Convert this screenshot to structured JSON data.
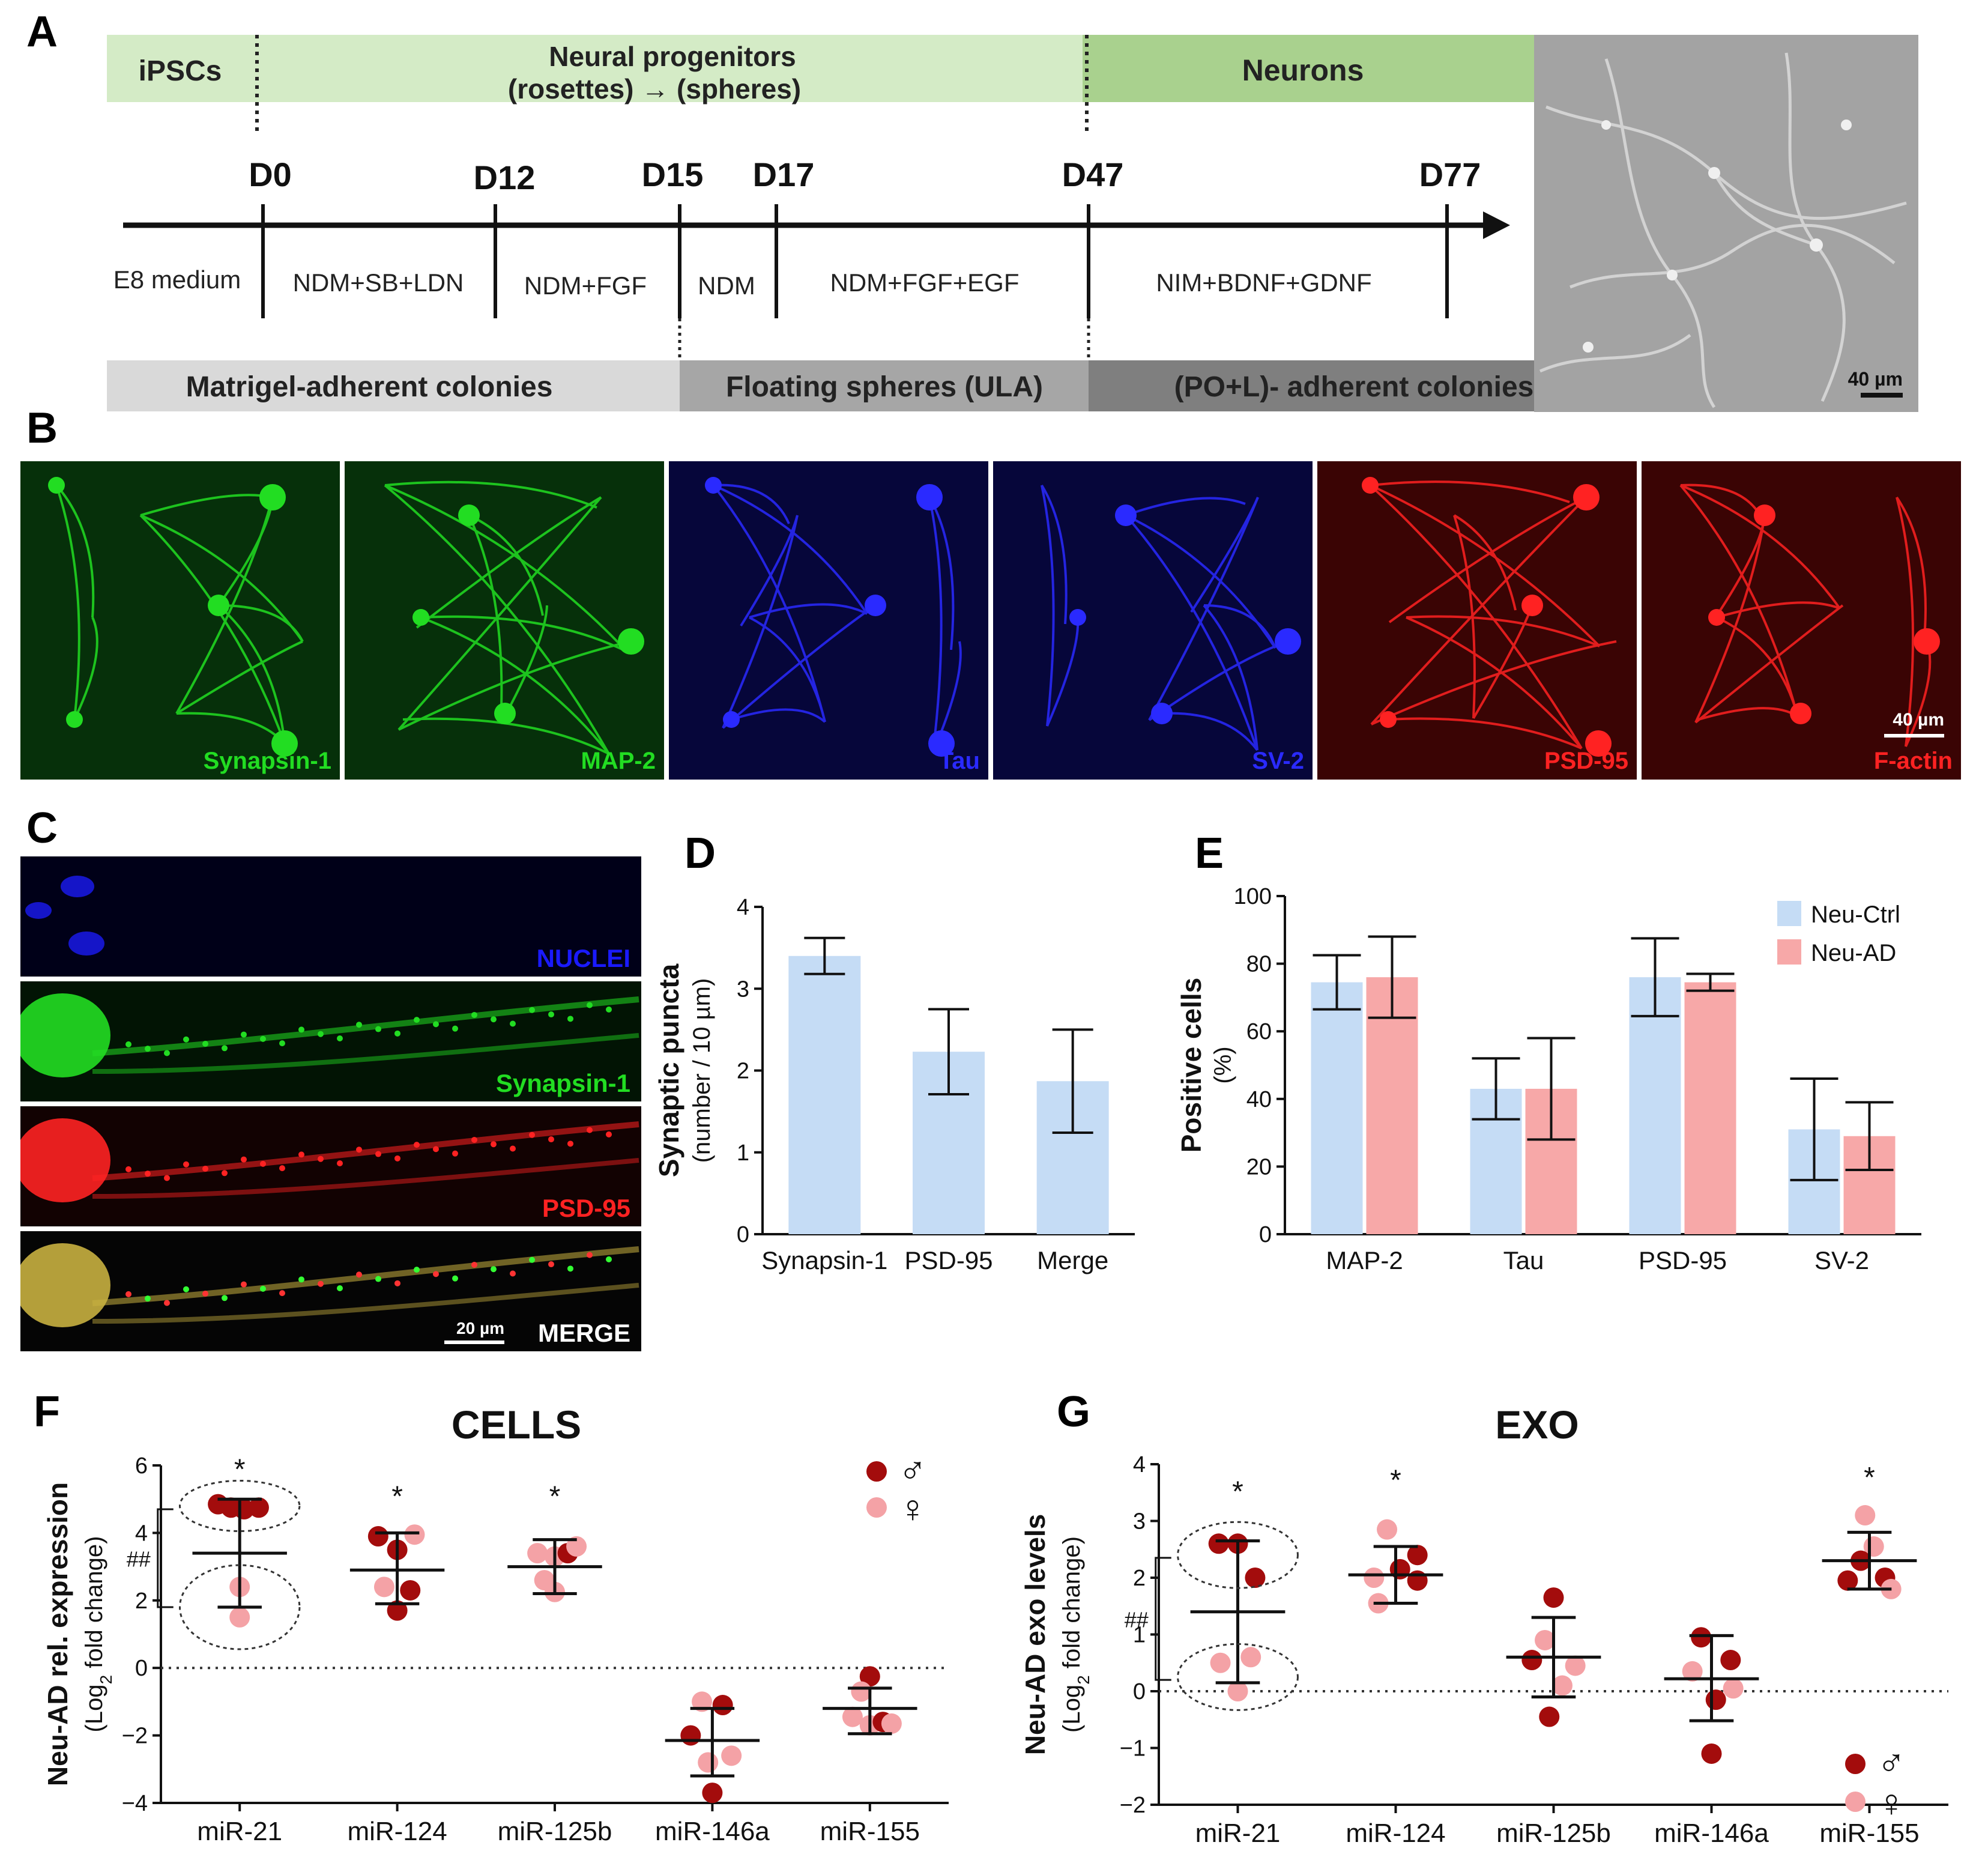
{
  "panels": {
    "a": "A",
    "b": "B",
    "c": "C",
    "d": "D",
    "e": "E",
    "f": "F",
    "g": "G"
  },
  "panelA": {
    "stages": {
      "ipsc": "iPSCs",
      "progenitors_line1": "Neural progenitors",
      "progenitors_line2": "(rosettes)  →  (spheres)",
      "neurons": "Neurons"
    },
    "days": [
      "D0",
      "D12",
      "D15",
      "D17",
      "D47",
      "D77"
    ],
    "media": [
      "E8 medium",
      "NDM+SB+LDN",
      "NDM+FGF",
      "NDM",
      "NDM+FGF+EGF",
      "NIM+BDNF+GDNF"
    ],
    "substrates": [
      "Matrigel-adherent colonies",
      "Floating spheres (ULA)",
      "(PO+L)- adherent colonies"
    ],
    "scale": "40 µm",
    "colors": {
      "stage_light": "#d4ebc6",
      "stage_dark": "#a9d18e",
      "sub_light": "#d9d9d9",
      "sub_mid": "#a6a6a6",
      "sub_dark": "#7f7f7f"
    }
  },
  "panelB": {
    "stains": [
      {
        "label": "Synapsin-1",
        "color": "#22dd22"
      },
      {
        "label": "MAP-2",
        "color": "#22dd22"
      },
      {
        "label": "Tau",
        "color": "#2a2aff"
      },
      {
        "label": "SV-2",
        "color": "#2a2aff"
      },
      {
        "label": "PSD-95",
        "color": "#ff2222"
      },
      {
        "label": "F-actin",
        "color": "#ff2222"
      }
    ],
    "scale": "40 µm"
  },
  "panelC": {
    "channels": [
      {
        "label": "NUCLEI",
        "color": "#1a1aff"
      },
      {
        "label": "Synapsin-1",
        "color": "#22dd22"
      },
      {
        "label": "PSD-95",
        "color": "#ff2222"
      },
      {
        "label": "MERGE",
        "color": "#ffffff"
      }
    ],
    "scale": "20 µm"
  },
  "chart_data": [
    {
      "id": "D",
      "type": "bar",
      "categories": [
        "Synapsin-1",
        "PSD-95",
        "Merge"
      ],
      "values": [
        3.4,
        2.23,
        1.87
      ],
      "errors": [
        0.22,
        0.52,
        0.63
      ],
      "ylabel_line1": "Synaptic puncta",
      "ylabel_line2": "(number / 10 µm)",
      "ylim": [
        0,
        4
      ],
      "yticks": [
        "0",
        "1",
        "2",
        "3",
        "4"
      ],
      "yticks_values": [
        0,
        1,
        2,
        3,
        4
      ],
      "bar_color": "#c5dcf5"
    },
    {
      "id": "E",
      "type": "bar",
      "categories": [
        "MAP-2",
        "Tau",
        "PSD-95",
        "SV-2"
      ],
      "series": [
        {
          "name": "Neu-Ctrl",
          "color": "#c5dcf5",
          "values": [
            74.5,
            43,
            76,
            31
          ],
          "errors": [
            8,
            9,
            11.5,
            15
          ]
        },
        {
          "name": "Neu-AD",
          "color": "#f7a8a8",
          "values": [
            76,
            43,
            74.5,
            29
          ],
          "errors": [
            12,
            15,
            2.5,
            10
          ]
        }
      ],
      "ylabel_line1": "Positive cells",
      "ylabel_line2": "(%)",
      "ylim": [
        0,
        100
      ],
      "yticks": [
        "0",
        "20",
        "40",
        "60",
        "80",
        "100"
      ],
      "yticks_values": [
        0,
        20,
        40,
        60,
        80,
        100
      ]
    },
    {
      "id": "F",
      "type": "scatter",
      "title": "CELLS",
      "categories": [
        "miR-21",
        "miR-124",
        "miR-125b",
        "miR-146a",
        "miR-155"
      ],
      "ylabel_line1": "Neu-AD rel. expression",
      "ylabel_line2": "(Log",
      "ylabel_sub": "2",
      "ylabel_line3": " fold change)",
      "ylim": [
        -4,
        6
      ],
      "yticks": [
        "−4",
        "−2",
        "0",
        "2",
        "4",
        "6"
      ],
      "yticks_values": [
        -4,
        -2,
        0,
        2,
        4,
        6
      ],
      "means": [
        3.4,
        2.9,
        3.0,
        -2.15,
        -1.2
      ],
      "sd_upper": [
        5.0,
        4.0,
        3.8,
        -1.2,
        -0.6
      ],
      "sd_lower": [
        1.8,
        1.9,
        2.2,
        -3.2,
        -1.95
      ],
      "points": [
        [
          {
            "x": -0.25,
            "y": 4.85,
            "sex": "M"
          },
          {
            "x": -0.1,
            "y": 4.75,
            "sex": "M"
          },
          {
            "x": 0.05,
            "y": 4.7,
            "sex": "M"
          },
          {
            "x": 0.22,
            "y": 4.75,
            "sex": "M"
          },
          {
            "x": 0.0,
            "y": 2.4,
            "sex": "F"
          },
          {
            "x": 0.0,
            "y": 1.5,
            "sex": "F"
          }
        ],
        [
          {
            "x": -0.22,
            "y": 3.9,
            "sex": "M"
          },
          {
            "x": 0.0,
            "y": 3.5,
            "sex": "M"
          },
          {
            "x": 0.2,
            "y": 3.95,
            "sex": "F"
          },
          {
            "x": -0.15,
            "y": 2.4,
            "sex": "F"
          },
          {
            "x": 0.15,
            "y": 2.3,
            "sex": "M"
          },
          {
            "x": 0.0,
            "y": 1.7,
            "sex": "M"
          }
        ],
        [
          {
            "x": -0.2,
            "y": 3.4,
            "sex": "F"
          },
          {
            "x": 0.0,
            "y": 3.3,
            "sex": "F"
          },
          {
            "x": 0.15,
            "y": 3.4,
            "sex": "M"
          },
          {
            "x": 0.25,
            "y": 3.6,
            "sex": "F"
          },
          {
            "x": -0.12,
            "y": 2.6,
            "sex": "F"
          },
          {
            "x": 0.0,
            "y": 2.25,
            "sex": "F"
          }
        ],
        [
          {
            "x": -0.12,
            "y": -1.0,
            "sex": "F"
          },
          {
            "x": 0.12,
            "y": -1.1,
            "sex": "M"
          },
          {
            "x": -0.25,
            "y": -2.0,
            "sex": "M"
          },
          {
            "x": 0.22,
            "y": -2.6,
            "sex": "F"
          },
          {
            "x": -0.05,
            "y": -2.8,
            "sex": "F"
          },
          {
            "x": 0.0,
            "y": -3.7,
            "sex": "M"
          }
        ],
        [
          {
            "x": 0.0,
            "y": -0.25,
            "sex": "M"
          },
          {
            "x": -0.1,
            "y": -0.7,
            "sex": "F"
          },
          {
            "x": -0.2,
            "y": -1.45,
            "sex": "F"
          },
          {
            "x": 0.0,
            "y": -1.7,
            "sex": "F"
          },
          {
            "x": 0.15,
            "y": -1.6,
            "sex": "M"
          },
          {
            "x": 0.25,
            "y": -1.65,
            "sex": "F"
          }
        ]
      ],
      "significance": [
        "*",
        "*",
        "*",
        "",
        ""
      ],
      "bracket_label": "##",
      "legend": {
        "male_symbol": "♂",
        "female_symbol": "♀"
      }
    },
    {
      "id": "G",
      "type": "scatter",
      "title": "EXO",
      "categories": [
        "miR-21",
        "miR-124",
        "miR-125b",
        "miR-146a",
        "miR-155"
      ],
      "ylabel_line1": "Neu-AD exo levels",
      "ylabel_line2": "(Log",
      "ylabel_sub": "2",
      "ylabel_line3": " fold change)",
      "ylim": [
        -2,
        4
      ],
      "yticks": [
        "−2",
        "−1",
        "0",
        "1",
        "2",
        "3",
        "4"
      ],
      "yticks_values": [
        -2,
        -1,
        0,
        1,
        2,
        3,
        4
      ],
      "means": [
        1.4,
        2.05,
        0.6,
        0.22,
        2.3
      ],
      "sd_upper": [
        2.65,
        2.55,
        1.3,
        0.98,
        2.8
      ],
      "sd_lower": [
        0.15,
        1.55,
        -0.1,
        -0.52,
        1.8
      ],
      "points": [
        [
          {
            "x": -0.22,
            "y": 2.6,
            "sex": "M"
          },
          {
            "x": 0.0,
            "y": 2.6,
            "sex": "M"
          },
          {
            "x": 0.2,
            "y": 2.0,
            "sex": "M"
          },
          {
            "x": -0.2,
            "y": 0.5,
            "sex": "F"
          },
          {
            "x": 0.15,
            "y": 0.6,
            "sex": "F"
          },
          {
            "x": 0.0,
            "y": 0.0,
            "sex": "F"
          }
        ],
        [
          {
            "x": -0.1,
            "y": 2.85,
            "sex": "F"
          },
          {
            "x": 0.25,
            "y": 2.4,
            "sex": "M"
          },
          {
            "x": 0.05,
            "y": 2.15,
            "sex": "M"
          },
          {
            "x": -0.25,
            "y": 2.0,
            "sex": "F"
          },
          {
            "x": 0.25,
            "y": 1.95,
            "sex": "M"
          },
          {
            "x": -0.2,
            "y": 1.55,
            "sex": "F"
          }
        ],
        [
          {
            "x": 0.0,
            "y": 1.65,
            "sex": "M"
          },
          {
            "x": -0.1,
            "y": 0.9,
            "sex": "F"
          },
          {
            "x": -0.25,
            "y": 0.55,
            "sex": "M"
          },
          {
            "x": 0.25,
            "y": 0.45,
            "sex": "F"
          },
          {
            "x": 0.1,
            "y": 0.1,
            "sex": "F"
          },
          {
            "x": -0.05,
            "y": -0.45,
            "sex": "M"
          }
        ],
        [
          {
            "x": -0.12,
            "y": 0.95,
            "sex": "M"
          },
          {
            "x": 0.22,
            "y": 0.55,
            "sex": "M"
          },
          {
            "x": -0.22,
            "y": 0.35,
            "sex": "F"
          },
          {
            "x": 0.25,
            "y": 0.05,
            "sex": "F"
          },
          {
            "x": 0.05,
            "y": -0.15,
            "sex": "M"
          },
          {
            "x": 0.0,
            "y": -1.1,
            "sex": "M"
          }
        ],
        [
          {
            "x": -0.05,
            "y": 3.1,
            "sex": "F"
          },
          {
            "x": 0.05,
            "y": 2.55,
            "sex": "F"
          },
          {
            "x": -0.1,
            "y": 2.3,
            "sex": "M"
          },
          {
            "x": 0.18,
            "y": 2.0,
            "sex": "M"
          },
          {
            "x": -0.25,
            "y": 1.95,
            "sex": "M"
          },
          {
            "x": 0.25,
            "y": 1.8,
            "sex": "F"
          }
        ],
        []
      ],
      "significance": [
        "*",
        "*",
        "",
        "",
        "*"
      ],
      "bracket_label": "##",
      "legend": {
        "male_symbol": "♂",
        "female_symbol": "♀"
      }
    }
  ],
  "sex_colors": {
    "M": "#a30c0c",
    "F": "#f4a2a6"
  }
}
